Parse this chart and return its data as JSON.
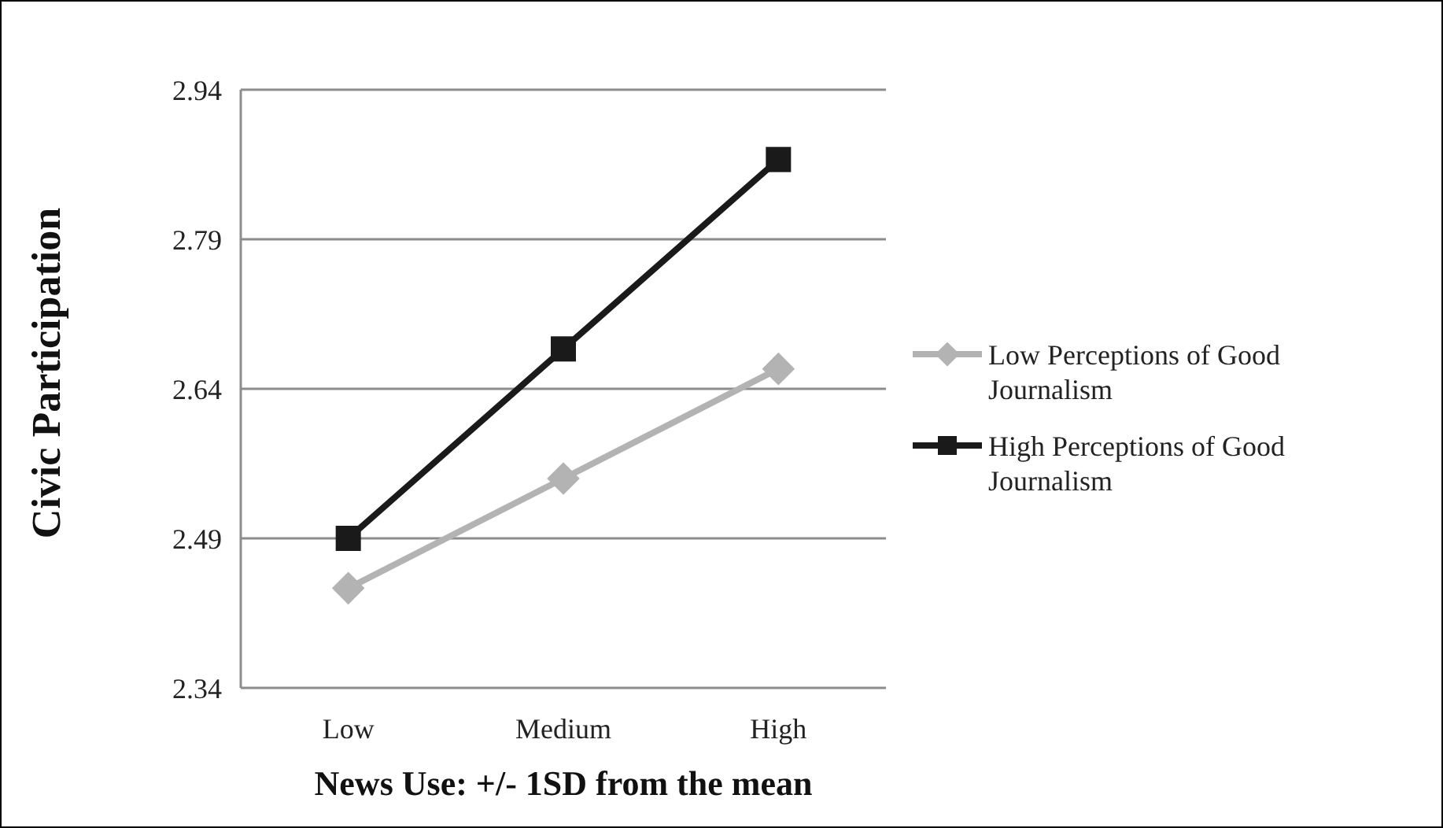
{
  "chart_data": {
    "type": "line",
    "xlabel": "News Use: +/- 1SD from the mean",
    "ylabel": "Civic Participation",
    "categories": [
      "Low",
      "Medium",
      "High"
    ],
    "series": [
      {
        "name": "Low Perceptions of Good Journalism",
        "color": "#b3b3b3",
        "marker": "diamond",
        "values": [
          2.44,
          2.55,
          2.66
        ]
      },
      {
        "name": "High Perceptions of Good Journalism",
        "color": "#1a1a1a",
        "marker": "square",
        "values": [
          2.49,
          2.68,
          2.87
        ]
      }
    ],
    "ylim": [
      2.34,
      2.94
    ],
    "yticks": [
      {
        "value": 2.34,
        "label": "2.34"
      },
      {
        "value": 2.49,
        "label": "2.49"
      },
      {
        "value": 2.64,
        "label": "2.64"
      },
      {
        "value": 2.79,
        "label": "2.79"
      },
      {
        "value": 2.94,
        "label": "2.94"
      }
    ],
    "grid": "y",
    "legend": "right",
    "line_style": "solid"
  }
}
